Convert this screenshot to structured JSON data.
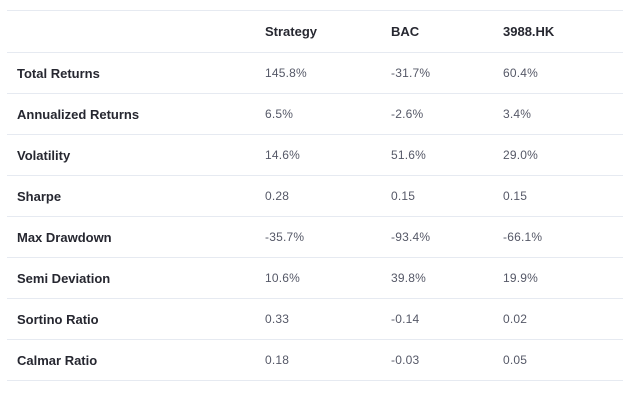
{
  "table": {
    "columns": [
      "",
      "Strategy",
      "BAC",
      "3988.HK"
    ],
    "rows": [
      {
        "label": "Total Returns",
        "values": [
          "145.8%",
          "-31.7%",
          "60.4%"
        ]
      },
      {
        "label": "Annualized Returns",
        "values": [
          "6.5%",
          "-2.6%",
          "3.4%"
        ]
      },
      {
        "label": "Volatility",
        "values": [
          "14.6%",
          "51.6%",
          "29.0%"
        ]
      },
      {
        "label": "Sharpe",
        "values": [
          "0.28",
          "0.15",
          "0.15"
        ]
      },
      {
        "label": "Max Drawdown",
        "values": [
          "-35.7%",
          "-93.4%",
          "-66.1%"
        ]
      },
      {
        "label": "Semi Deviation",
        "values": [
          "10.6%",
          "39.8%",
          "19.9%"
        ]
      },
      {
        "label": "Sortino Ratio",
        "values": [
          "0.33",
          "-0.14",
          "0.02"
        ]
      },
      {
        "label": "Calmar Ratio",
        "values": [
          "0.18",
          "-0.03",
          "0.05"
        ]
      }
    ]
  }
}
